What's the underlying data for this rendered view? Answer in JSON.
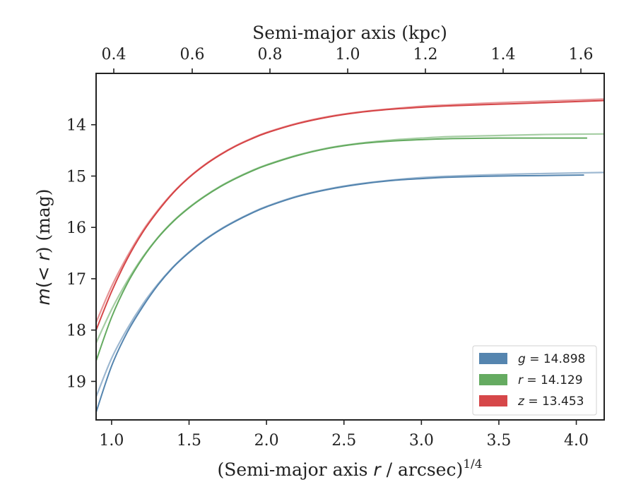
{
  "chart_data": {
    "type": "line",
    "xlabel": "(Semi-major axis ",
    "xlabel_var": "r",
    "xlabel_tail": " / arcsec)",
    "xlabel_sup": "1/4",
    "ylabel_pre": "m",
    "ylabel_mid": "(< ",
    "ylabel_var": "r",
    "ylabel_post": ") (mag)",
    "top_xlabel": "Semi-major axis (kpc)",
    "xlim": [
      0.9,
      4.18
    ],
    "ylim": [
      19.75,
      13.0
    ],
    "y_inverted": true,
    "x_ticks": [
      "1.0",
      "1.5",
      "2.0",
      "2.5",
      "3.0",
      "3.5",
      "4.0"
    ],
    "x_tick_values": [
      1.0,
      1.5,
      2.0,
      2.5,
      3.0,
      3.5,
      4.0
    ],
    "y_ticks": [
      "14",
      "15",
      "16",
      "17",
      "18",
      "19"
    ],
    "y_tick_values": [
      14,
      15,
      16,
      17,
      18,
      19
    ],
    "top_x_ticks": [
      "0.4",
      "0.6",
      "0.8",
      "1.0",
      "1.2",
      "1.4",
      "1.6"
    ],
    "top_x_tick_bottom_equiv": [
      1.0,
      1.5,
      2.0,
      2.5,
      3.0,
      3.5,
      4.0
    ],
    "grid": false,
    "legend_position": "lower-right",
    "series": [
      {
        "name": "g",
        "legend_value": "= 14.898",
        "color": "#4c7eab",
        "x": [
          0.9,
          1.0,
          1.1,
          1.2,
          1.3,
          1.4,
          1.5,
          1.6,
          1.7,
          1.8,
          1.9,
          2.0,
          2.2,
          2.4,
          2.6,
          2.8,
          3.0,
          3.2,
          3.5,
          3.8,
          4.05
        ],
        "y": [
          19.6,
          18.7,
          18.05,
          17.55,
          17.12,
          16.77,
          16.49,
          16.25,
          16.05,
          15.88,
          15.73,
          15.6,
          15.4,
          15.26,
          15.16,
          15.09,
          15.05,
          15.02,
          15.0,
          14.99,
          14.98
        ],
        "x2": [
          0.9,
          1.0,
          1.1,
          1.2,
          1.3,
          1.4,
          1.5,
          1.6,
          1.7,
          1.8,
          1.9,
          2.0,
          2.2,
          2.4,
          2.6,
          2.8,
          3.0,
          3.2,
          3.5,
          3.8,
          4.18
        ],
        "y2": [
          19.3,
          18.55,
          17.98,
          17.5,
          17.1,
          16.76,
          16.48,
          16.24,
          16.04,
          15.87,
          15.72,
          15.59,
          15.39,
          15.25,
          15.15,
          15.08,
          15.03,
          15.0,
          14.97,
          14.95,
          14.93
        ]
      },
      {
        "name": "r",
        "legend_value": "= 14.129",
        "color": "#5da659",
        "x": [
          0.9,
          1.0,
          1.1,
          1.2,
          1.3,
          1.4,
          1.5,
          1.6,
          1.7,
          1.8,
          1.9,
          2.0,
          2.2,
          2.4,
          2.6,
          2.8,
          3.0,
          3.2,
          3.5,
          3.8,
          4.07
        ],
        "y": [
          18.6,
          17.75,
          17.1,
          16.6,
          16.2,
          15.88,
          15.62,
          15.4,
          15.21,
          15.05,
          14.91,
          14.79,
          14.6,
          14.46,
          14.37,
          14.32,
          14.29,
          14.27,
          14.26,
          14.26,
          14.26
        ],
        "x2": [
          0.9,
          1.0,
          1.1,
          1.2,
          1.3,
          1.4,
          1.5,
          1.6,
          1.7,
          1.8,
          1.9,
          2.0,
          2.2,
          2.4,
          2.6,
          2.8,
          3.0,
          3.2,
          3.5,
          3.8,
          4.18
        ],
        "y2": [
          18.25,
          17.6,
          17.05,
          16.58,
          16.19,
          15.87,
          15.61,
          15.39,
          15.2,
          15.04,
          14.9,
          14.78,
          14.59,
          14.45,
          14.36,
          14.3,
          14.26,
          14.23,
          14.21,
          14.19,
          14.18
        ]
      },
      {
        "name": "z",
        "legend_value": "= 13.453",
        "color": "#d43d3f",
        "x": [
          0.9,
          1.0,
          1.1,
          1.2,
          1.3,
          1.4,
          1.5,
          1.6,
          1.7,
          1.8,
          1.9,
          2.0,
          2.2,
          2.4,
          2.6,
          2.8,
          3.0,
          3.2,
          3.5,
          3.8,
          4.18
        ],
        "y": [
          18.0,
          17.25,
          16.62,
          16.1,
          15.68,
          15.32,
          15.03,
          14.79,
          14.59,
          14.42,
          14.28,
          14.16,
          13.98,
          13.85,
          13.76,
          13.7,
          13.66,
          13.63,
          13.6,
          13.57,
          13.53
        ],
        "x2": [
          0.9,
          1.0,
          1.1,
          1.2,
          1.3,
          1.4,
          1.5,
          1.6,
          1.7,
          1.8,
          1.9,
          2.0,
          2.2,
          2.4,
          2.6,
          2.8,
          3.0,
          3.2,
          3.5,
          3.8,
          4.18
        ],
        "y2": [
          17.85,
          17.15,
          16.57,
          16.07,
          15.66,
          15.31,
          15.02,
          14.78,
          14.58,
          14.41,
          14.27,
          14.15,
          13.97,
          13.84,
          13.75,
          13.69,
          13.64,
          13.61,
          13.57,
          13.54,
          13.5
        ]
      }
    ]
  }
}
